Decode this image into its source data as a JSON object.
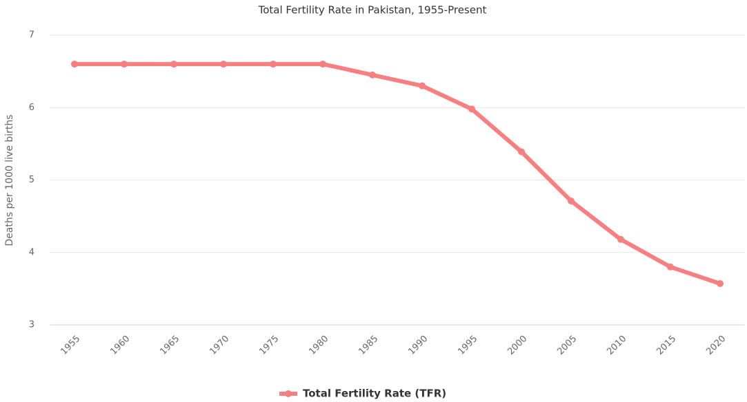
{
  "chart_data": {
    "type": "line",
    "title": "Total Fertility Rate in Pakistan, 1955-Present",
    "y_label": "Deaths per 1000 live births",
    "categories": [
      "1955",
      "1960",
      "1965",
      "1970",
      "1975",
      "1980",
      "1985",
      "1990",
      "1995",
      "2000",
      "2005",
      "2010",
      "2015",
      "2020"
    ],
    "series": [
      {
        "name": "Total Fertility Rate (TFR)",
        "color": "#f77f80",
        "values": [
          6.6,
          6.6,
          6.6,
          6.6,
          6.6,
          6.6,
          6.45,
          6.3,
          5.98,
          5.39,
          4.71,
          4.18,
          3.8,
          3.57
        ]
      }
    ],
    "ylim": [
      3,
      7
    ],
    "yticks": [
      3,
      4,
      5,
      6,
      7
    ],
    "grid": true,
    "legend": "bottom"
  }
}
